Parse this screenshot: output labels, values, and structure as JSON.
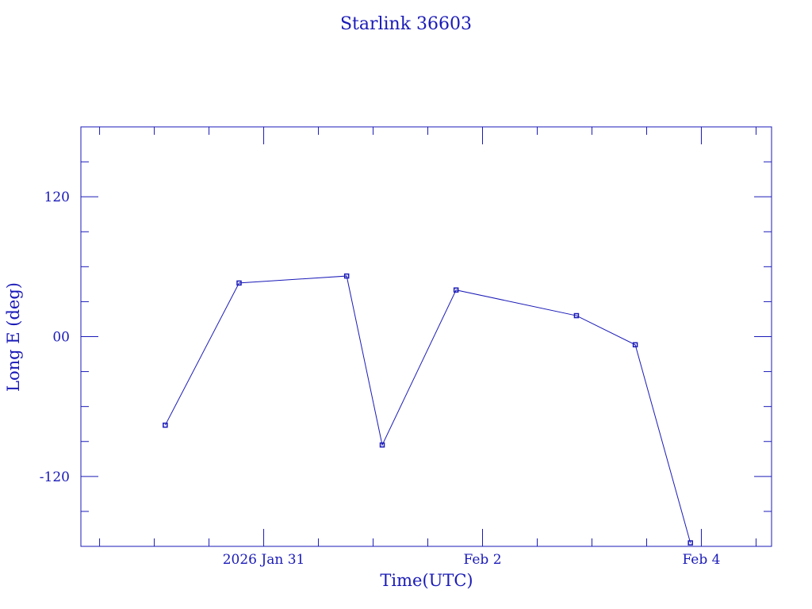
{
  "chart_data": {
    "type": "line",
    "title": "Starlink 36603",
    "xlabel": "Time(UTC)",
    "ylabel": "Long E (deg)",
    "x_units": "hours since 2026 Jan 31 00:00 UTC",
    "xlim": [
      -40.1,
      111.4
    ],
    "ylim": [
      -180,
      180
    ],
    "x_ticks": [
      {
        "value": 0,
        "label": "2026 Jan 31"
      },
      {
        "value": 48,
        "label": "Feb  2"
      },
      {
        "value": 96,
        "label": "Feb  4"
      }
    ],
    "x_minor_step": 12,
    "y_ticks": [
      {
        "value": 120,
        "label": "120"
      },
      {
        "value": 0,
        "label": "00"
      },
      {
        "value": -120,
        "label": "-120"
      }
    ],
    "y_minor_step": 30,
    "grid": false,
    "series": [
      {
        "name": "Starlink 36603",
        "x": [
          -21.6,
          -5.4,
          18.2,
          26.0,
          42.2,
          68.6,
          81.5,
          93.6
        ],
        "values": [
          -76,
          46,
          52,
          -93,
          40,
          18,
          -7,
          -177
        ]
      }
    ],
    "color": "#1a1ab8"
  }
}
